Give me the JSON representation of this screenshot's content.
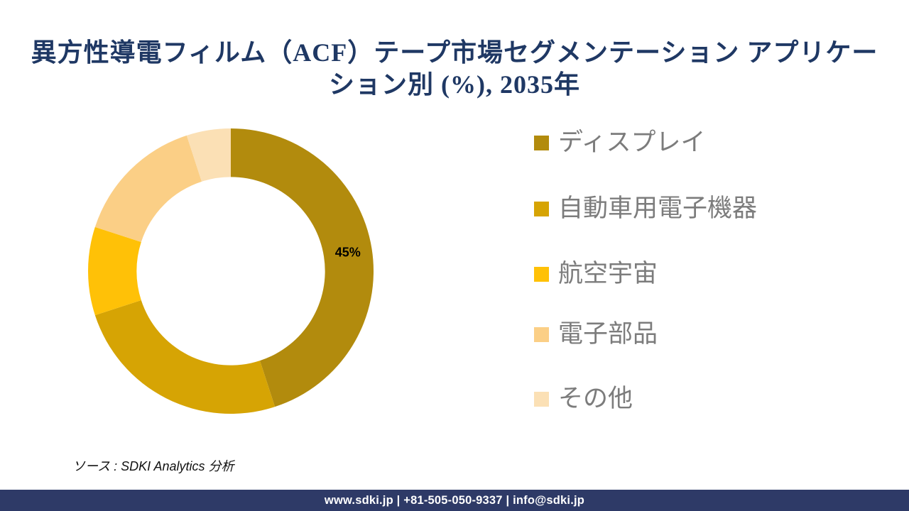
{
  "title": {
    "line1": "異方性導電フィルム（ACF）テープ市場セグメンテーション アプリケー",
    "line2": "ション別 (%), 2035年",
    "full": "異方性導電フィルム（ACF）テープ市場セグメンテーション アプリケーション別 (%), 2035年",
    "color": "#1F3864"
  },
  "chart_data": {
    "type": "pie",
    "subtype": "donut",
    "title": "異方性導電フィルム（ACF）テープ市場セグメンテーション アプリケーション別 (%), 2035年",
    "labels": [
      "ディスプレイ",
      "自動車用電子機器",
      "航空宇宙",
      "電子部品",
      "その他"
    ],
    "values": [
      45,
      25,
      10,
      15,
      5
    ],
    "unit": "%",
    "colors": [
      "#B28B0D",
      "#D6A404",
      "#FFC107",
      "#FBCF86",
      "#FBE0B5"
    ],
    "value_labels": [
      "45%",
      "",
      "",
      "",
      ""
    ],
    "value_label_color": "#000000",
    "start_angle_deg": 0,
    "direction": "clockwise",
    "inner_radius_ratio": 0.66,
    "hole_color": "#FFFFFF",
    "legend_position": "right",
    "legend_text_color": "#7C7C7C"
  },
  "source_note": "ソース : SDKI Analytics 分析",
  "footer": {
    "text": "www.sdki.jp | +81-505-050-9337 | info@sdki.jp",
    "background": "#2E3A67",
    "text_color": "#FFFFFF"
  }
}
